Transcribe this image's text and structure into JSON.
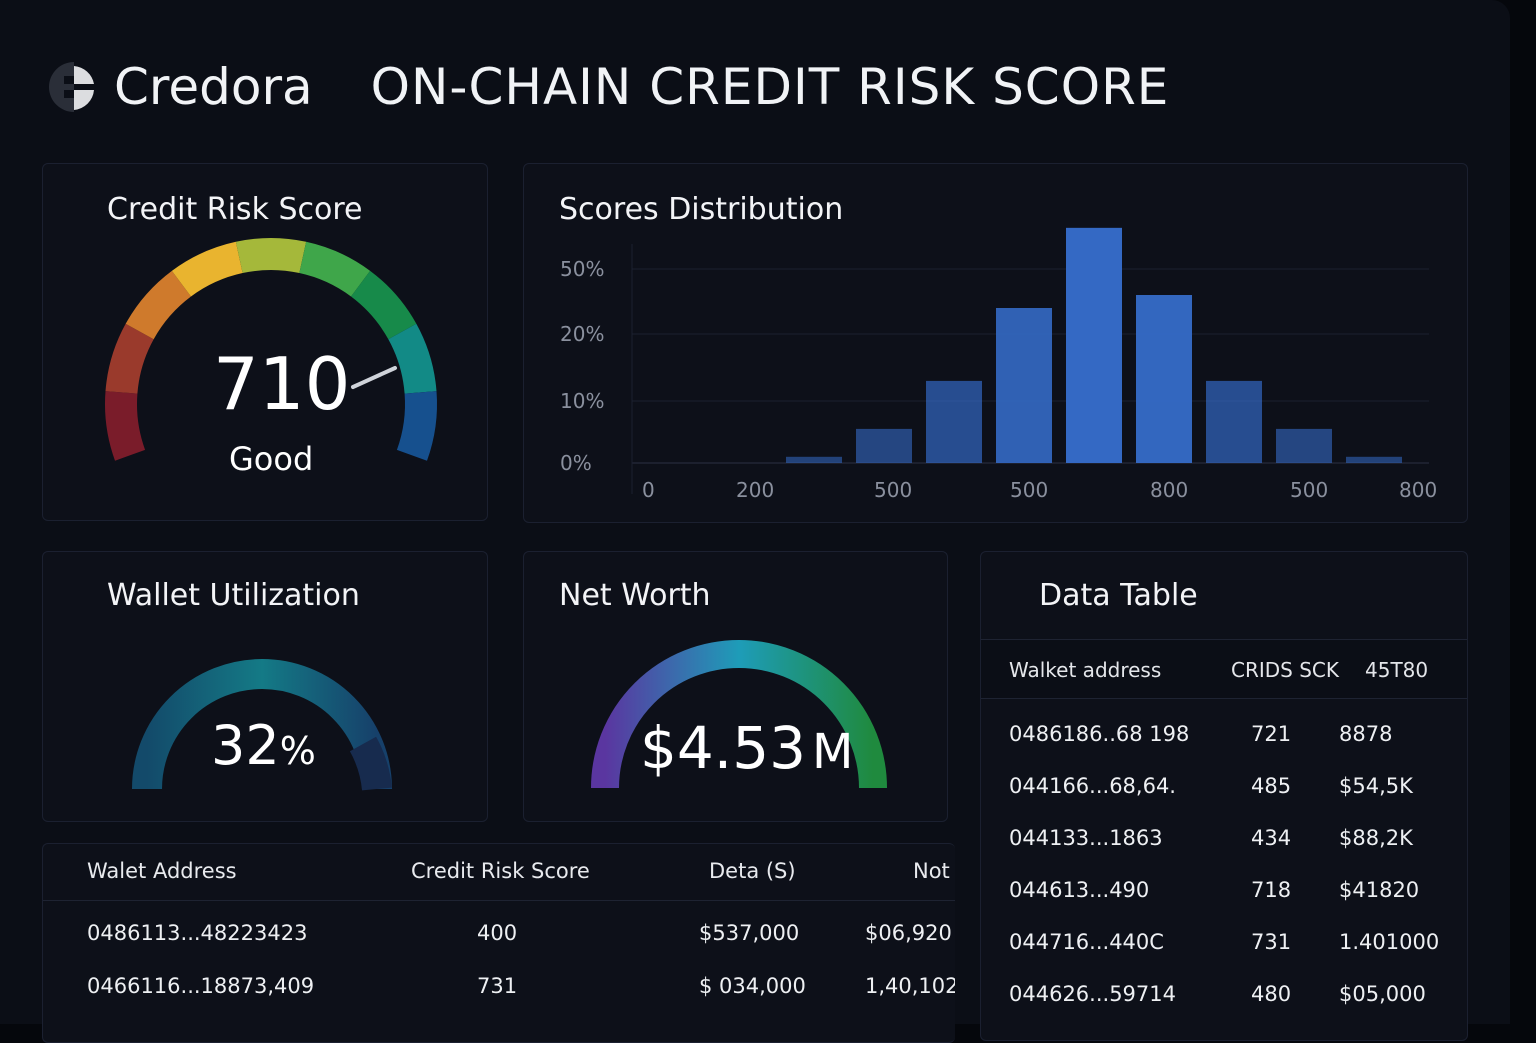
{
  "header": {
    "brand": "Credora",
    "title": "ON-CHAIN CREDIT RISK SCORE",
    "logo_icon": "credora-logo-icon"
  },
  "credit_score": {
    "title": "Credit Risk Score",
    "value": "710",
    "rating": "Good",
    "gauge_colors": [
      "#7a1c2a",
      "#9a3a2c",
      "#cf7a2c",
      "#e9b42f",
      "#a5b83a",
      "#3fa64a",
      "#178a4a",
      "#128a86",
      "#16508e"
    ]
  },
  "chart_data": {
    "type": "bar",
    "title": "Scores Distribution",
    "yticks": [
      "0%",
      "10%",
      "20%",
      "50%"
    ],
    "ytick_values": [
      0,
      10,
      20,
      50
    ],
    "xticks": [
      "0",
      "200",
      "500",
      "500",
      "800",
      "500",
      "800"
    ],
    "values": [
      1,
      5.5,
      13,
      32,
      69,
      38,
      13,
      5.5,
      1
    ],
    "grid": true,
    "color": "#3469c4"
  },
  "wallet_util": {
    "title": "Wallet Utilization",
    "value": "32",
    "unit": "%",
    "fraction": 0.32
  },
  "net_worth": {
    "title": "Net Worth",
    "value": "$4.53",
    "unit": "M"
  },
  "data_table": {
    "title": "Data Table",
    "columns": [
      "Walket address",
      "CRIDS SCK",
      "45T80"
    ],
    "rows": [
      [
        "0486186..68 198",
        "721",
        "8878"
      ],
      [
        "044166...68,64.",
        "485",
        "$54,5K"
      ],
      [
        "044133...1863",
        "434",
        "$88,2K"
      ],
      [
        "044613...490",
        "718",
        "$41820"
      ],
      [
        "044716...440C",
        "731",
        "1.401000"
      ],
      [
        "044626...59714",
        "480",
        "$05,000"
      ]
    ]
  },
  "bottom_table": {
    "columns": [
      "Walet Address",
      "Credit Risk Score",
      "Deta (S)",
      "Not"
    ],
    "rows": [
      [
        "0486113...48223423",
        "400",
        "$537,000",
        "$06,920"
      ],
      [
        "0466116...18873,409",
        "731",
        "$ 034,000",
        "1,40,102"
      ]
    ]
  }
}
